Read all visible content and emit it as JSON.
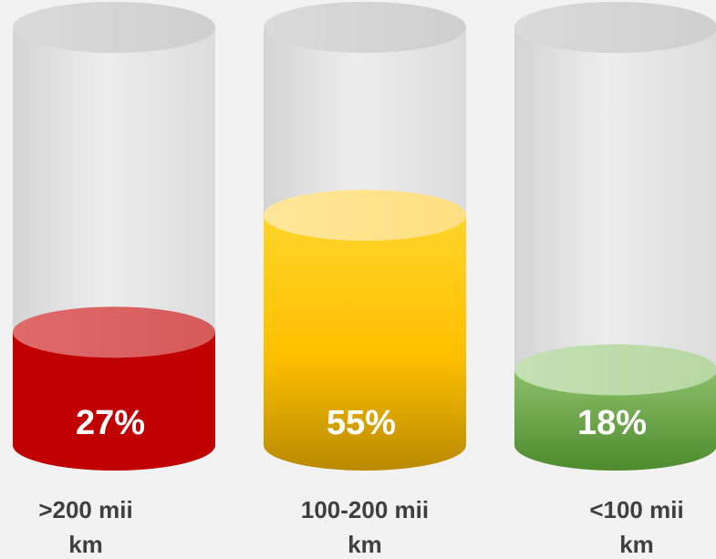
{
  "chart_data": {
    "type": "bar",
    "categories": [
      ">200 mii km",
      "100-200 mii km",
      "<100 mii km"
    ],
    "values": [
      27,
      55,
      18
    ],
    "value_labels": [
      "27%",
      "55%",
      "18%"
    ],
    "category_label_lines": [
      [
        ">200 mii",
        "km"
      ],
      [
        "100-200 mii",
        "km"
      ],
      [
        "<100 mii",
        "km"
      ]
    ],
    "ylim": [
      0,
      100
    ],
    "unit": "%",
    "title": "",
    "xlabel": "",
    "ylabel": "",
    "grid": false,
    "colors": {
      "bar_fills": [
        "#c00000",
        "#ffc000",
        "#70ad47"
      ],
      "track": "#e6e6e6"
    }
  }
}
